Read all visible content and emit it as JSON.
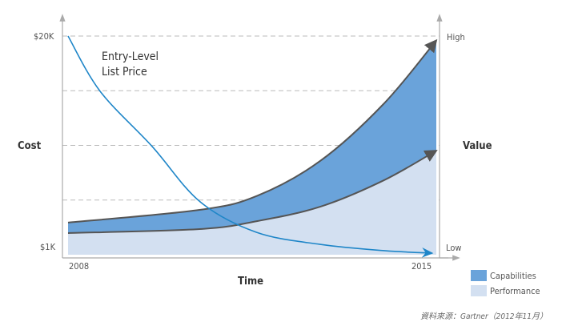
{
  "chart_data": {
    "type": "area",
    "title": "",
    "xlabel": "Time",
    "ylabel_left": "Cost",
    "ylabel_right": "Value",
    "x_ticks": [
      "2008",
      "2015"
    ],
    "xlim": [
      2008,
      2015
    ],
    "y_left_ticks": [
      "$20K",
      "$1K"
    ],
    "y_left_range_k": [
      1,
      20
    ],
    "y_right_ticks": [
      "High",
      "Low"
    ],
    "y_right_range_index": [
      0,
      100
    ],
    "grid": "dashed horizontal",
    "annotation": [
      "Entry-Level",
      "List Price"
    ],
    "series": [
      {
        "name": "Capabilities",
        "color": "#6aa3da",
        "axis": "right",
        "x": [
          2008,
          2010.5,
          2011.6,
          2012.8,
          2014.0,
          2015
        ],
        "y": [
          14.7,
          20.5,
          27,
          43,
          69,
          98
        ]
      },
      {
        "name": "Performance",
        "color": "#d3e0f1",
        "axis": "right",
        "x": [
          2008,
          2010.5,
          2011.6,
          2012.8,
          2014.0,
          2015
        ],
        "y": [
          9.9,
          11.7,
          15.4,
          22,
          34,
          47.6
        ]
      },
      {
        "name": "Entry-Level List Price",
        "color": "#1f86c8",
        "axis": "left",
        "x": [
          2008,
          2008.61,
          2009.6,
          2010.51,
          2011.58,
          2012.79,
          2014.01,
          2014.92
        ],
        "y": [
          20,
          15.2,
          10.4,
          5.6,
          2.95,
          1.9,
          1.35,
          1.14
        ]
      }
    ],
    "legend_position": "bottom-right"
  },
  "source": "資料來源：Gartner（2012年11月）"
}
